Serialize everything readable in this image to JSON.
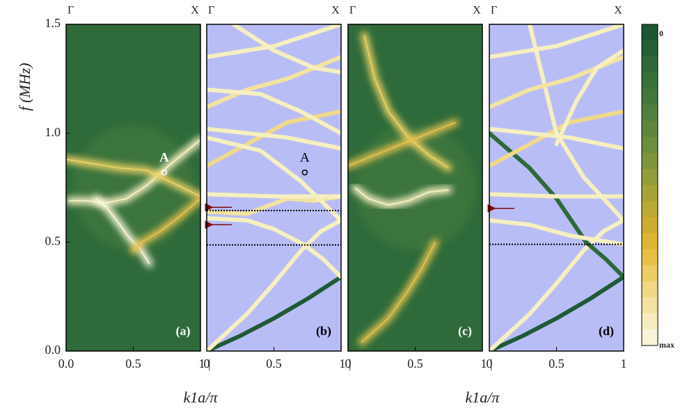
{
  "chart_data": [
    {
      "type": "contour",
      "top_labels": [
        "Γ",
        "X"
      ],
      "panel_label": "(a)",
      "ylabel": "f (MHz)",
      "xlabel": "k1a/π",
      "xlim": [
        0,
        1
      ],
      "ylim": [
        0,
        1.5
      ],
      "xticks": [
        {
          "value": 0,
          "label": "0.0"
        },
        0.5,
        {
          "value": 1,
          "label": "1 |"
        }
      ],
      "yticks": [
        {
          "value": 0,
          "label": "0.0"
        },
        0.5,
        {
          "value": 1,
          "label": "1.0"
        },
        1.5
      ],
      "background": "#2f6b3a",
      "series": [
        {
          "color": "#fff6c8",
          "x": [
            0.02,
            0.15,
            0.3,
            0.45,
            0.6,
            0.8,
            1.0
          ],
          "values": [
            0.69,
            0.69,
            0.68,
            0.7,
            0.76,
            0.87,
            0.97
          ]
        },
        {
          "color": "#f3d566",
          "x": [
            0.0,
            0.2,
            0.4,
            0.6,
            0.8,
            1.0
          ],
          "values": [
            0.88,
            0.86,
            0.84,
            0.83,
            0.77,
            0.71
          ]
        },
        {
          "color": "#fffbe0",
          "x": [
            0.22,
            0.3,
            0.4,
            0.47,
            0.55,
            0.62
          ],
          "values": [
            0.7,
            0.66,
            0.58,
            0.52,
            0.47,
            0.4
          ]
        },
        {
          "color": "#e9c350",
          "x": [
            0.5,
            0.56,
            0.62,
            0.7,
            0.85,
            1.0
          ],
          "values": [
            0.46,
            0.5,
            0.52,
            0.55,
            0.62,
            0.7
          ]
        }
      ],
      "markers": [
        {
          "x": 0.73,
          "y": 0.82,
          "label": "A"
        }
      ]
    },
    {
      "type": "bands",
      "top_labels": [
        "Γ",
        "X"
      ],
      "panel_label": "(b)",
      "xlim": [
        0,
        1
      ],
      "ylim": [
        0,
        1.5
      ],
      "xticks": [
        0,
        0.5,
        {
          "value": 1,
          "label": "1 |"
        }
      ],
      "background": "#b9bdf6",
      "series": [
        {
          "color": "#1e5a36",
          "x": [
            0,
            0.25,
            0.5,
            0.75,
            1
          ],
          "values": [
            0,
            0.07,
            0.15,
            0.24,
            0.34
          ]
        },
        {
          "color": "#f6efc0",
          "x": [
            0,
            0.3,
            0.5,
            0.7,
            0.85,
            1
          ],
          "values": [
            0,
            0.17,
            0.31,
            0.46,
            0.55,
            0.6
          ]
        },
        {
          "color": "#f6efc0",
          "x": [
            0,
            0.3,
            0.5,
            0.72,
            0.87,
            1
          ],
          "values": [
            0.61,
            0.6,
            0.56,
            0.49,
            0.42,
            0.34
          ]
        },
        {
          "color": "#f3e3a0",
          "x": [
            0,
            0.3,
            0.6,
            0.8,
            1
          ],
          "values": [
            0.64,
            0.63,
            0.7,
            0.69,
            0.71
          ]
        },
        {
          "color": "#f6efc0",
          "x": [
            0,
            0.5,
            1
          ],
          "values": [
            0.72,
            0.71,
            0.71
          ]
        },
        {
          "color": "#f0d98a",
          "x": [
            0,
            0.3,
            0.6,
            1
          ],
          "values": [
            0.85,
            0.95,
            1.05,
            1.1
          ]
        },
        {
          "color": "#f6efc0",
          "x": [
            0,
            0.3,
            0.6,
            1
          ],
          "values": [
            1.02,
            1.0,
            0.98,
            0.93
          ]
        },
        {
          "color": "#f6efc0",
          "x": [
            0,
            0.4,
            0.7,
            1
          ],
          "values": [
            0.98,
            0.92,
            0.78,
            0.6
          ]
        },
        {
          "color": "#f3e3a0",
          "x": [
            0,
            0.3,
            0.6,
            1
          ],
          "values": [
            1.12,
            1.2,
            1.25,
            1.35
          ]
        },
        {
          "color": "#f6efc0",
          "x": [
            0,
            0.4,
            0.7,
            1
          ],
          "values": [
            1.2,
            1.18,
            1.1,
            1.0
          ]
        },
        {
          "color": "#f6efc0",
          "x": [
            0,
            0.5,
            1
          ],
          "values": [
            1.35,
            1.4,
            1.5
          ]
        },
        {
          "color": "#f6efc0",
          "x": [
            0.2,
            0.5,
            0.8,
            1
          ],
          "values": [
            1.5,
            1.38,
            1.3,
            1.28
          ]
        }
      ],
      "hlines": [
        0.645,
        0.487
      ],
      "arrows": [
        0.66,
        0.58
      ],
      "markers": [
        {
          "x": 0.73,
          "y": 0.82,
          "label": "A"
        }
      ]
    },
    {
      "type": "contour",
      "top_labels": [
        "Γ",
        "X"
      ],
      "panel_label": "(c)",
      "xlabel": "k1a/π",
      "xlim": [
        0,
        1
      ],
      "ylim": [
        0,
        1.5
      ],
      "xticks": [
        0,
        0.5,
        {
          "value": 1,
          "label": "1 |"
        }
      ],
      "background": "#2f6b3a",
      "series": [
        {
          "color": "#f3d566",
          "x": [
            0.12,
            0.2,
            0.3,
            0.45,
            0.6,
            0.75
          ],
          "values": [
            1.45,
            1.25,
            1.1,
            0.98,
            0.9,
            0.84
          ]
        },
        {
          "color": "#fff6c8",
          "x": [
            0.05,
            0.15,
            0.3,
            0.45,
            0.6,
            0.75
          ],
          "values": [
            0.75,
            0.7,
            0.67,
            0.69,
            0.73,
            0.74
          ]
        },
        {
          "color": "#e9c350",
          "x": [
            0.1,
            0.3,
            0.45,
            0.55,
            0.65
          ],
          "values": [
            0.04,
            0.15,
            0.28,
            0.38,
            0.5
          ]
        },
        {
          "color": "#e9c350",
          "x": [
            0.0,
            0.2,
            0.4,
            0.6,
            0.8
          ],
          "values": [
            0.85,
            0.9,
            0.95,
            1.0,
            1.05
          ]
        }
      ]
    },
    {
      "type": "bands",
      "top_labels": [
        "Γ",
        "X"
      ],
      "panel_label": "(d)",
      "xlim": [
        0,
        1
      ],
      "ylim": [
        0,
        1.5
      ],
      "xticks": [
        0,
        0.5,
        1
      ],
      "background": "#b9bdf6",
      "series": [
        {
          "color": "#1e5a36",
          "x": [
            0,
            0.25,
            0.5,
            0.75,
            1
          ],
          "values": [
            0,
            0.07,
            0.15,
            0.24,
            0.34
          ]
        },
        {
          "color": "#f6efc0",
          "x": [
            0,
            0.3,
            0.5,
            0.7,
            0.85,
            1
          ],
          "values": [
            0,
            0.17,
            0.31,
            0.46,
            0.55,
            0.6
          ]
        },
        {
          "color": "#2c6a3a",
          "x": [
            0,
            0.3,
            0.5,
            0.72,
            0.87,
            1
          ],
          "values": [
            1.0,
            0.84,
            0.7,
            0.5,
            0.42,
            0.34
          ]
        },
        {
          "color": "#f6efc0",
          "x": [
            0,
            0.3,
            0.6,
            1
          ],
          "values": [
            0.6,
            0.58,
            0.53,
            0.49
          ]
        },
        {
          "color": "#f6efc0",
          "x": [
            0,
            0.5,
            1
          ],
          "values": [
            0.72,
            0.71,
            0.71
          ]
        },
        {
          "color": "#f0d98a",
          "x": [
            0,
            0.3,
            0.6,
            1
          ],
          "values": [
            0.85,
            0.95,
            1.05,
            1.1
          ]
        },
        {
          "color": "#f6efc0",
          "x": [
            0,
            0.3,
            0.6,
            1
          ],
          "values": [
            1.02,
            1.0,
            0.98,
            0.93
          ]
        },
        {
          "color": "#f6efc0",
          "x": [
            0.3,
            0.5,
            0.7,
            1
          ],
          "values": [
            1.5,
            1.0,
            0.8,
            0.6
          ]
        },
        {
          "color": "#f3e3a0",
          "x": [
            0,
            0.3,
            0.6,
            1
          ],
          "values": [
            1.12,
            1.2,
            1.25,
            1.35
          ]
        },
        {
          "color": "#f6efc0",
          "x": [
            0.5,
            0.65,
            0.8,
            1
          ],
          "values": [
            0.95,
            1.15,
            1.3,
            1.38
          ]
        },
        {
          "color": "#f6efc0",
          "x": [
            0,
            0.5,
            1
          ],
          "values": [
            1.35,
            1.4,
            1.5
          ]
        }
      ],
      "hlines": [
        0.49
      ],
      "arrows": [
        0.655
      ]
    },
    {
      "type": "colorbar",
      "ticklabels": [
        "0",
        "max"
      ],
      "colors": [
        "#1d5632",
        "#255f36",
        "#2e6838",
        "#38703a",
        "#43783c",
        "#50803d",
        "#5e873d",
        "#6d8e3d",
        "#7e953c",
        "#919c3a",
        "#a5a337",
        "#baa934",
        "#cdad31",
        "#dcb533",
        "#e6c046",
        "#edcd64",
        "#f1d884",
        "#f4e2a2",
        "#f7ecbf",
        "#faf4d8"
      ]
    }
  ]
}
